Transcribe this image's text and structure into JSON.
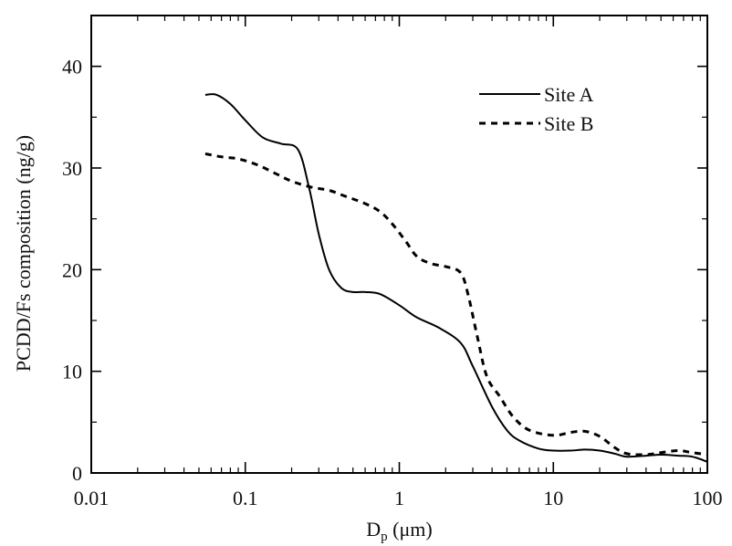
{
  "chart_data": {
    "type": "line",
    "xlabel_main": "D",
    "xlabel_sub": "p",
    "xlabel_unit": " (μm)",
    "ylabel": "PCDD/Fs composition (ng/g)",
    "x_scale": "log",
    "xlim": [
      0.01,
      100
    ],
    "ylim": [
      0,
      45
    ],
    "x_ticks": [
      0.01,
      0.1,
      1,
      10,
      100
    ],
    "x_tick_labels": [
      "0.01",
      "0.1",
      "1",
      "10",
      "100"
    ],
    "y_ticks": [
      0,
      10,
      20,
      30,
      40
    ],
    "y_tick_labels": [
      "0",
      "10",
      "20",
      "30",
      "40"
    ],
    "grid": false,
    "legend_position": "top-right",
    "series": [
      {
        "name": "Site A",
        "style": "solid",
        "color": "#000000",
        "x": [
          0.055,
          0.065,
          0.08,
          0.1,
          0.13,
          0.17,
          0.22,
          0.26,
          0.3,
          0.35,
          0.42,
          0.5,
          0.6,
          0.75,
          1.0,
          1.3,
          1.8,
          2.5,
          3.0,
          4.0,
          5.0,
          6.0,
          8.0,
          10,
          13,
          16,
          20,
          25,
          30,
          40,
          50,
          65,
          80,
          100
        ],
        "y": [
          37.2,
          37.2,
          36.3,
          34.7,
          33.0,
          32.4,
          31.8,
          28.0,
          23.5,
          20.0,
          18.2,
          17.8,
          17.8,
          17.6,
          16.5,
          15.3,
          14.3,
          12.8,
          10.5,
          6.5,
          4.2,
          3.2,
          2.4,
          2.2,
          2.2,
          2.3,
          2.2,
          1.9,
          1.6,
          1.7,
          1.8,
          1.7,
          1.6,
          1.1
        ]
      },
      {
        "name": "Site B",
        "style": "dashed",
        "color": "#000000",
        "x": [
          0.055,
          0.07,
          0.09,
          0.12,
          0.16,
          0.2,
          0.27,
          0.35,
          0.45,
          0.6,
          0.75,
          0.9,
          1.1,
          1.3,
          1.6,
          2.0,
          2.5,
          2.8,
          3.2,
          3.7,
          4.5,
          5.5,
          7.0,
          10,
          13,
          16,
          20,
          25,
          30,
          40,
          50,
          65,
          80,
          100
        ],
        "y": [
          31.4,
          31.1,
          30.9,
          30.3,
          29.4,
          28.7,
          28.1,
          27.8,
          27.2,
          26.5,
          25.7,
          24.5,
          22.8,
          21.3,
          20.6,
          20.3,
          19.7,
          17.5,
          13.5,
          9.5,
          7.5,
          5.5,
          4.2,
          3.7,
          4.0,
          4.1,
          3.6,
          2.5,
          1.9,
          1.8,
          2.0,
          2.2,
          2.0,
          1.8
        ]
      }
    ]
  }
}
